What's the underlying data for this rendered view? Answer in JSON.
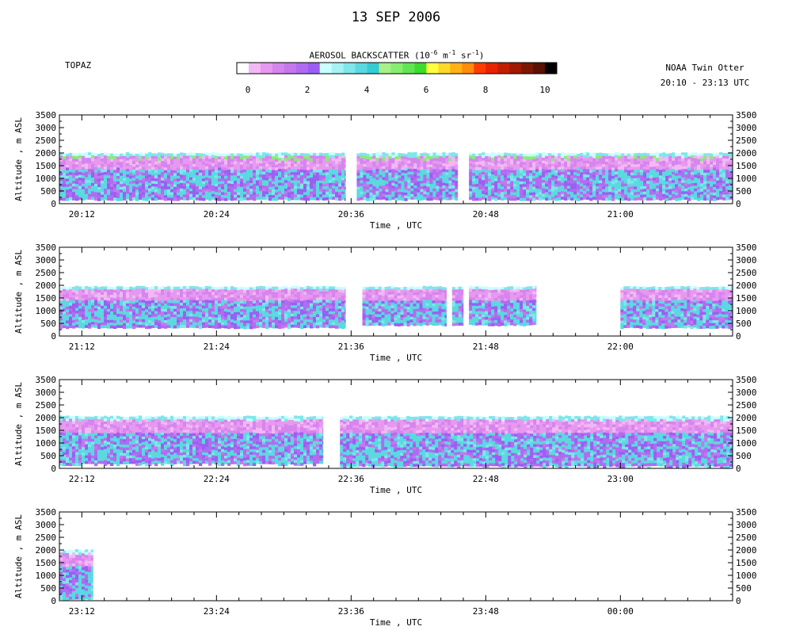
{
  "title": "13 SEP 2006",
  "site": "TOPAZ",
  "platform": "NOAA Twin Otter",
  "time_range": "20:10 - 23:13 UTC",
  "colorbar": {
    "label_prefix": "AEROSOL BACKSCATTER (10",
    "exp1": "-6",
    "mid1": " m",
    "exp2": "-1",
    "mid2": " sr",
    "exp3": "-1",
    "label_suffix": ")",
    "min": 0,
    "max": 10,
    "ticks": [
      "0",
      "2",
      "4",
      "6",
      "8",
      "10"
    ],
    "colors": [
      "#ffffff",
      "#f2b8f4",
      "#e699ef",
      "#d685ee",
      "#c478ee",
      "#b06cf0",
      "#9a5ff2",
      "#c8ffff",
      "#a6f1f3",
      "#7fe6ea",
      "#5ad9e0",
      "#33ccd5",
      "#a8f08a",
      "#86ee6e",
      "#60e652",
      "#3ddb2c",
      "#ffff40",
      "#ffd829",
      "#ffb214",
      "#ff8c0a",
      "#ff3c00",
      "#e82200",
      "#c31d00",
      "#a01900",
      "#7d1600",
      "#5a1000",
      "#000000"
    ]
  },
  "chart_data": [
    {
      "type": "heatmap",
      "ylabel": "Altitude , m ASL",
      "xlabel": "Time , UTC",
      "xlim": [
        "20:10",
        "21:10"
      ],
      "ylim": [
        0,
        3500
      ],
      "yticks": [
        "0",
        "500",
        "1000",
        "1500",
        "2000",
        "2500",
        "3000",
        "3500"
      ],
      "xticks": [
        "20:12",
        "20:24",
        "20:36",
        "20:48",
        "21:00"
      ],
      "data_segments": [
        {
          "start": "20:10",
          "end": "20:35:30",
          "top": 2000,
          "bottom": 200
        },
        {
          "start": "20:36:30",
          "end": "20:45:30",
          "top": 2000,
          "bottom": 200
        },
        {
          "start": "20:46:30",
          "end": "21:10",
          "top": 2000,
          "bottom": 200
        }
      ]
    },
    {
      "type": "heatmap",
      "ylabel": "Altitude , m ASL",
      "xlabel": "Time , UTC",
      "xlim": [
        "21:10",
        "22:10"
      ],
      "ylim": [
        0,
        3500
      ],
      "yticks": [
        "0",
        "500",
        "1000",
        "1500",
        "2000",
        "2500",
        "3000",
        "3500"
      ],
      "xticks": [
        "21:12",
        "21:24",
        "21:36",
        "21:48",
        "22:00"
      ],
      "data_segments": [
        {
          "start": "21:10",
          "end": "21:35:30",
          "top": 1950,
          "bottom": 350
        },
        {
          "start": "21:37",
          "end": "21:44:30",
          "top": 1950,
          "bottom": 450
        },
        {
          "start": "21:45",
          "end": "21:46",
          "top": 1950,
          "bottom": 450
        },
        {
          "start": "21:46:30",
          "end": "21:52:30",
          "top": 1950,
          "bottom": 450
        },
        {
          "start": "22:00",
          "end": "22:10",
          "top": 1950,
          "bottom": 350
        }
      ]
    },
    {
      "type": "heatmap",
      "ylabel": "Altitude , m ASL",
      "xlabel": "Time , UTC",
      "xlim": [
        "22:10",
        "23:10"
      ],
      "ylim": [
        0,
        3500
      ],
      "yticks": [
        "0",
        "500",
        "1000",
        "1500",
        "2000",
        "2500",
        "3000",
        "3500"
      ],
      "xticks": [
        "22:12",
        "22:24",
        "22:36",
        "22:48",
        "23:00"
      ],
      "data_segments": [
        {
          "start": "22:10",
          "end": "22:33:30",
          "top": 2050,
          "bottom": 200
        },
        {
          "start": "22:35",
          "end": "23:10",
          "top": 2050,
          "bottom": 100
        }
      ]
    },
    {
      "type": "heatmap",
      "ylabel": "Altitude , m ASL",
      "xlabel": "Time , UTC",
      "xlim": [
        "23:10",
        "00:10"
      ],
      "ylim": [
        0,
        3500
      ],
      "yticks": [
        "0",
        "500",
        "1000",
        "1500",
        "2000",
        "2500",
        "3000",
        "3500"
      ],
      "xticks": [
        "23:12",
        "23:24",
        "23:36",
        "23:48",
        "00:00"
      ],
      "data_segments": [
        {
          "start": "23:10",
          "end": "23:13",
          "top": 2000,
          "bottom": 100
        }
      ]
    }
  ]
}
